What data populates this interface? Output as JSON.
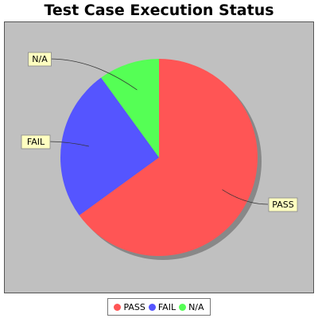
{
  "chart_data": {
    "type": "pie",
    "title": "Test Case Execution Status",
    "slices": [
      {
        "label": "PASS",
        "value": 65,
        "color": "#ff5555"
      },
      {
        "label": "FAIL",
        "value": 25,
        "color": "#5555ff"
      },
      {
        "label": "N/A",
        "value": 10,
        "color": "#55ff55"
      }
    ],
    "legend": "bottom"
  },
  "colors": {
    "plot_background": "#c0c0c0",
    "label_background": "#ffffc0"
  }
}
